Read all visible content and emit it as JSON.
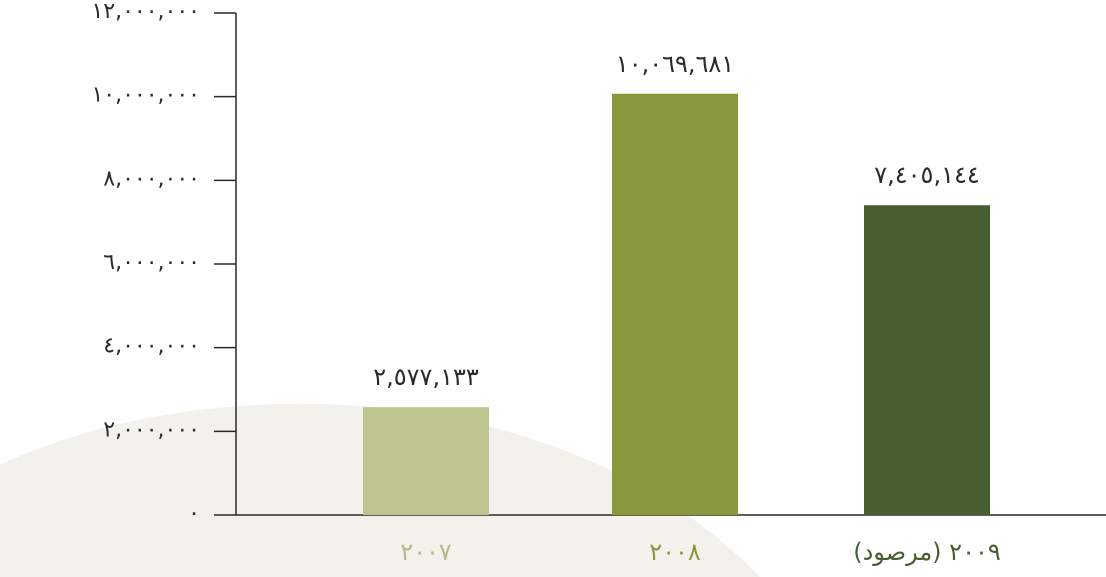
{
  "chart_data": {
    "type": "bar",
    "categories": [
      "٢٠٠٧",
      "٢٠٠٨",
      "٢٠٠٩ (مرصود)"
    ],
    "values": [
      2577133,
      10069681,
      7405144
    ],
    "value_labels": [
      "٢,٥٧٧,١٣٣",
      "١٠,٠٦٩,٦٨١",
      "٧,٤٠٥,١٤٤"
    ],
    "ylim": [
      0,
      12000000
    ],
    "yticks": [
      0,
      2000000,
      4000000,
      6000000,
      8000000,
      10000000,
      12000000
    ],
    "ytick_labels": [
      "٠",
      "٢,٠٠٠,٠٠٠",
      "٤,٠٠٠,٠٠٠",
      "٦,٠٠٠,٠٠٠",
      "٨,٠٠٠,٠٠٠",
      "١٠,٠٠٠,٠٠٠",
      "١٢,٠٠٠,٠٠٠"
    ],
    "bar_colors": [
      "#bdc48f",
      "#8a983c",
      "#475f30"
    ],
    "category_label_colors": [
      "#b2b98a",
      "#8a983c",
      "#475f30"
    ],
    "axis_color": "#2a2a2a",
    "background_wave_color": "#f2f1eb",
    "title": "",
    "xlabel": "",
    "ylabel": "",
    "grid": false
  }
}
